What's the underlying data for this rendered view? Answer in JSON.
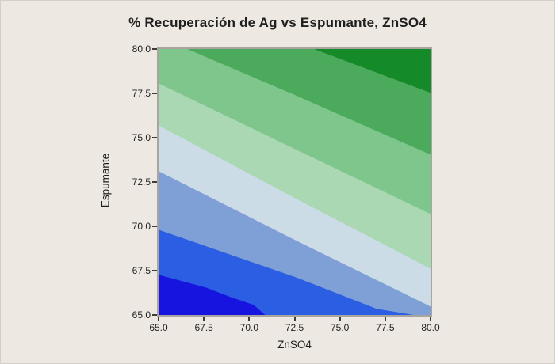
{
  "title": "% Recuperación de Ag vs Espumante, ZnSO4",
  "colors": {
    "background": "#EDE9E2",
    "outer_frame": "#D4CFC8",
    "plot_border": "#A9A49D",
    "text": "#1F1F1F",
    "tick": "#3C3C3C"
  },
  "chart_data": {
    "type": "heatmap",
    "subtype": "filled-contour-plot",
    "title": "% Recuperación de Ag vs Espumante, ZnSO4",
    "xlabel": "ZnSO4",
    "ylabel": "Espumante",
    "xlim": [
      65,
      80
    ],
    "ylim": [
      65,
      80
    ],
    "xtick_values": [
      65.0,
      67.5,
      70.0,
      72.5,
      75.0,
      77.5,
      80.0
    ],
    "ytick_values": [
      65.0,
      67.5,
      70.0,
      72.5,
      75.0,
      77.5,
      80.0
    ],
    "xtick_labels": [
      "65.0",
      "67.5",
      "70.0",
      "72.5",
      "75.0",
      "77.5",
      "80.0"
    ],
    "ytick_labels": [
      "65.0",
      "67.5",
      "70.0",
      "72.5",
      "75.0",
      "77.5",
      "80.0"
    ],
    "grid": "off",
    "legend": "not shown",
    "response": "% Recuperación de Ag",
    "gradient_direction": "low (dark blue) at bottom-left to high (dark green) at top-right",
    "bands": [
      {
        "name": "band-1-lowest",
        "color": "#1714E0",
        "polygon": [
          [
            65,
            67.28
          ],
          [
            67.62,
            66.56
          ],
          [
            68.94,
            66.03
          ],
          [
            70.25,
            65.58
          ],
          [
            70.9,
            65
          ],
          [
            65,
            65
          ]
        ]
      },
      {
        "name": "band-2",
        "color": "#2B5EE3",
        "polygon": [
          [
            65,
            69.82
          ],
          [
            72.57,
            67.14
          ],
          [
            77.03,
            65.36
          ],
          [
            79.13,
            65
          ],
          [
            70.9,
            65
          ],
          [
            70.25,
            65.58
          ],
          [
            68.94,
            66.03
          ],
          [
            67.62,
            66.56
          ],
          [
            65,
            67.28
          ]
        ]
      },
      {
        "name": "band-3",
        "color": "#7FA0D7",
        "polygon": [
          [
            65,
            73.13
          ],
          [
            72.43,
            69.29
          ],
          [
            80,
            65.49
          ],
          [
            80,
            65
          ],
          [
            79.13,
            65
          ],
          [
            77.03,
            65.36
          ],
          [
            72.57,
            67.14
          ],
          [
            65,
            69.82
          ]
        ]
      },
      {
        "name": "band-4",
        "color": "#CBDCE7",
        "polygon": [
          [
            65,
            75.71
          ],
          [
            72.43,
            71.65
          ],
          [
            80,
            67.63
          ],
          [
            80,
            65.49
          ],
          [
            72.43,
            69.29
          ],
          [
            65,
            73.13
          ]
        ]
      },
      {
        "name": "band-5",
        "color": "#A9D8B3",
        "polygon": [
          [
            65,
            78.08
          ],
          [
            72.43,
            74.42
          ],
          [
            80,
            70.71
          ],
          [
            80,
            67.63
          ],
          [
            72.43,
            71.65
          ],
          [
            65,
            75.71
          ]
        ]
      },
      {
        "name": "band-6",
        "color": "#7FC68D",
        "polygon": [
          [
            65,
            80
          ],
          [
            66.62,
            80
          ],
          [
            72.43,
            77.46
          ],
          [
            80,
            74.06
          ],
          [
            80,
            70.71
          ],
          [
            72.43,
            74.42
          ],
          [
            65,
            78.08
          ]
        ]
      },
      {
        "name": "band-7",
        "color": "#4CAA5C",
        "polygon": [
          [
            66.62,
            80
          ],
          [
            73.61,
            80
          ],
          [
            80,
            77.55
          ],
          [
            80,
            74.06
          ],
          [
            72.43,
            77.46
          ]
        ]
      },
      {
        "name": "band-8-highest",
        "color": "#148A28",
        "polygon": [
          [
            73.61,
            80
          ],
          [
            80,
            80
          ],
          [
            80,
            77.55
          ]
        ]
      }
    ]
  }
}
